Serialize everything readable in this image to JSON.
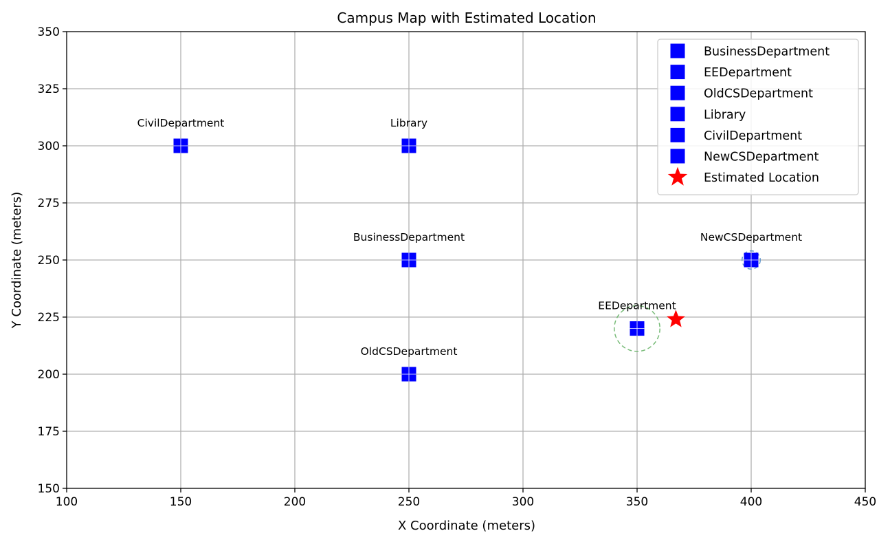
{
  "chart_data": {
    "type": "scatter",
    "title": "Campus Map with Estimated Location",
    "xlabel": "X Coordinate (meters)",
    "ylabel": "Y Coordinate (meters)",
    "xlim": [
      100,
      450
    ],
    "ylim": [
      150,
      350
    ],
    "xticks": [
      100,
      150,
      200,
      250,
      300,
      350,
      400,
      450
    ],
    "yticks": [
      150,
      175,
      200,
      225,
      250,
      275,
      300,
      325,
      350
    ],
    "grid": true,
    "legend_position": "top-right",
    "series": [
      {
        "name": "BusinessDepartment",
        "marker": "square",
        "color": "#0000ff",
        "x": 250,
        "y": 250
      },
      {
        "name": "EEDepartment",
        "marker": "square",
        "color": "#0000ff",
        "x": 350,
        "y": 220
      },
      {
        "name": "OldCSDepartment",
        "marker": "square",
        "color": "#0000ff",
        "x": 250,
        "y": 200
      },
      {
        "name": "Library",
        "marker": "square",
        "color": "#0000ff",
        "x": 250,
        "y": 300
      },
      {
        "name": "CivilDepartment",
        "marker": "square",
        "color": "#0000ff",
        "x": 150,
        "y": 300
      },
      {
        "name": "NewCSDepartment",
        "marker": "square",
        "color": "#0000ff",
        "x": 400,
        "y": 250
      },
      {
        "name": "Estimated Location",
        "marker": "star",
        "color": "#ff0000",
        "x": 367,
        "y": 224
      }
    ],
    "range_circles": [
      {
        "center": [
          350,
          220
        ],
        "radius": 10,
        "color": "#77bb77",
        "style": "dashed"
      },
      {
        "center": [
          350,
          220
        ],
        "radius": 3,
        "color": "#6699cc",
        "style": "dashed"
      },
      {
        "center": [
          400,
          250
        ],
        "radius": 4,
        "color": "#6699cc",
        "style": "dashed"
      }
    ]
  }
}
